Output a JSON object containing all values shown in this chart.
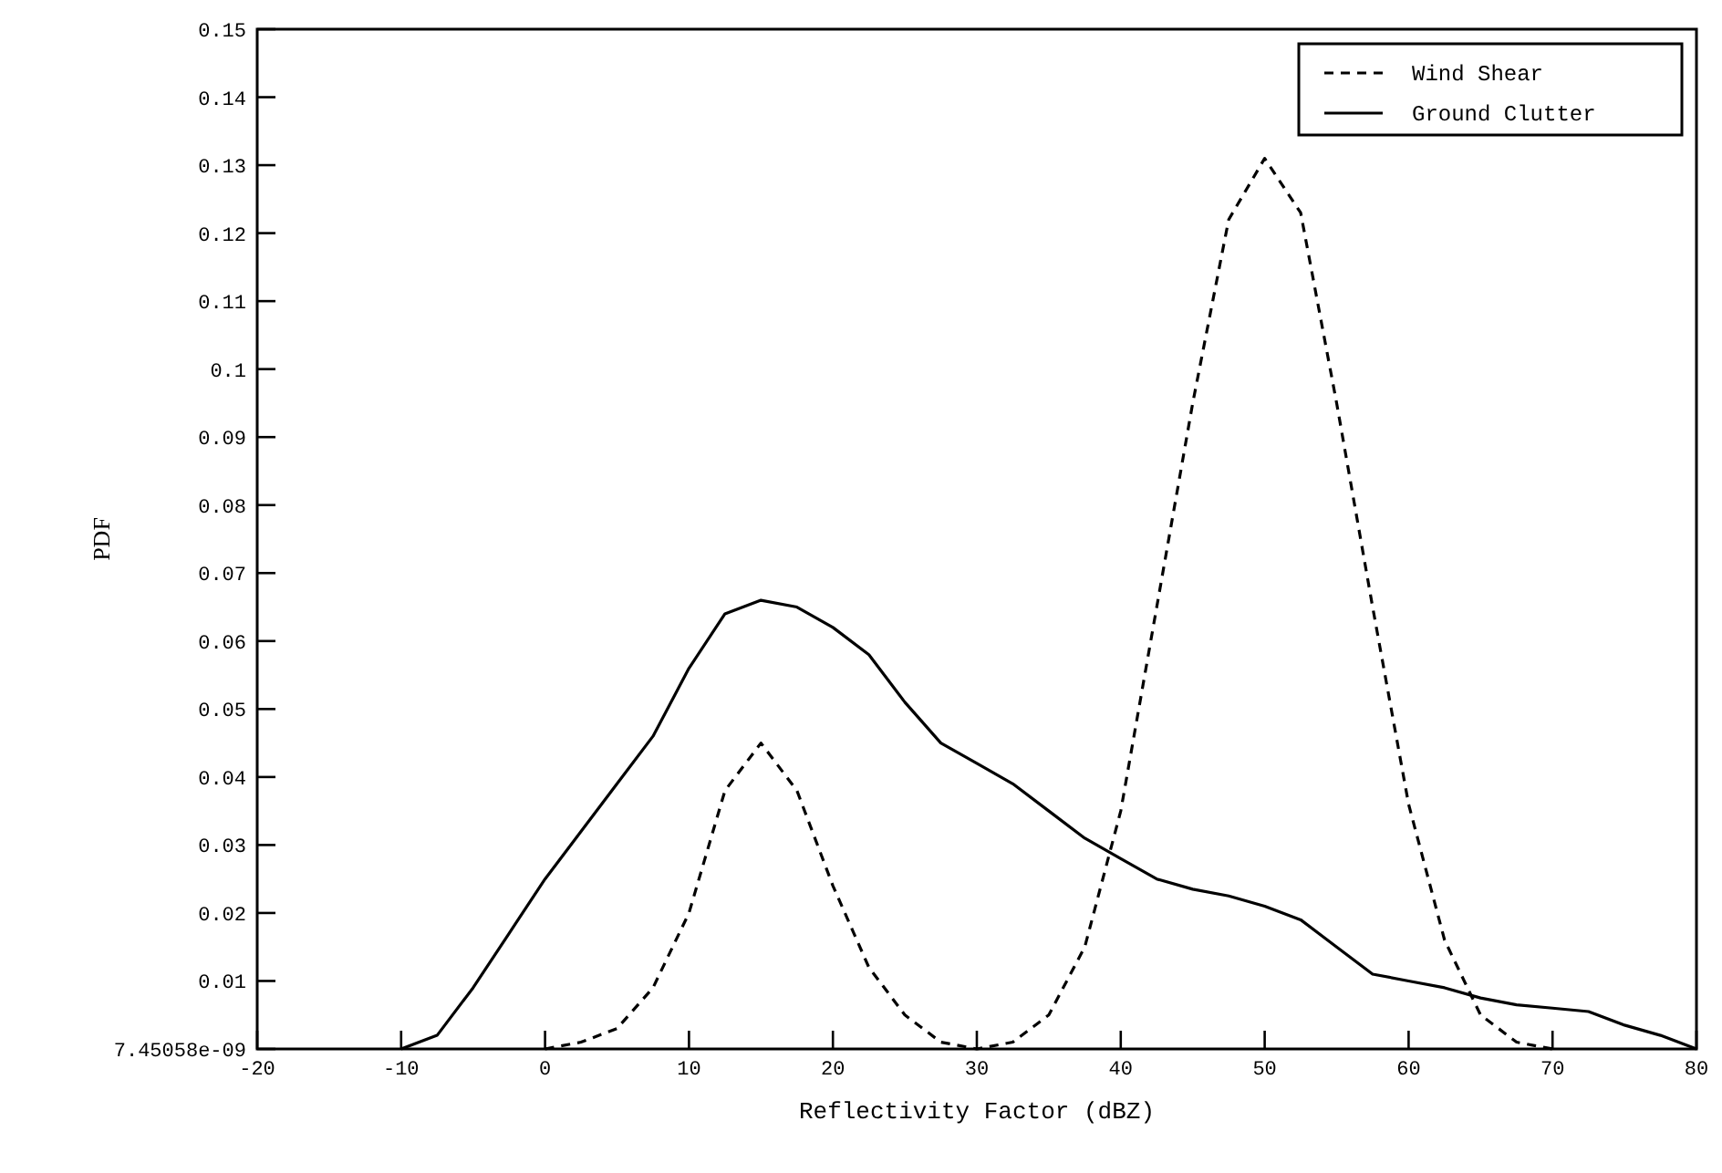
{
  "chart_data": {
    "type": "line",
    "xlabel": "Reflectivity Factor (dBZ)",
    "ylabel": "PDF",
    "xlim": [
      -20,
      80
    ],
    "xticks": [
      -20,
      -10,
      0,
      10,
      20,
      30,
      40,
      50,
      60,
      70,
      80
    ],
    "ylim": [
      7.45058e-09,
      0.15
    ],
    "yticks": [
      {
        "value": 7.45058e-09,
        "label": "7.45058e-09"
      },
      0.01,
      0.02,
      0.03,
      0.04,
      0.05,
      0.06,
      0.07,
      0.08,
      0.09,
      0.1,
      0.11,
      0.12,
      0.13,
      0.14,
      0.15
    ],
    "grid": false,
    "legend": "top right",
    "marker": "none",
    "series": [
      {
        "name": "Wind Shear",
        "color": "#000000",
        "line_style": "dashed",
        "x": [
          0,
          2.5,
          5,
          7.5,
          10,
          12.5,
          15,
          17.5,
          20,
          22.5,
          25,
          27.5,
          30,
          32.5,
          35,
          37.5,
          40,
          42.5,
          45,
          47.5,
          50,
          52.5,
          55,
          57.5,
          60,
          62.5,
          65,
          67.5,
          70
        ],
        "values": [
          7.45058e-09,
          0.001,
          0.003,
          0.009,
          0.02,
          0.038,
          0.045,
          0.038,
          0.024,
          0.012,
          0.005,
          0.001,
          7.45058e-09,
          0.001,
          0.005,
          0.015,
          0.035,
          0.065,
          0.095,
          0.122,
          0.131,
          0.123,
          0.095,
          0.065,
          0.036,
          0.016,
          0.005,
          0.001,
          7.45058e-09
        ]
      },
      {
        "name": "Ground Clutter",
        "color": "#000000",
        "line_style": "solid",
        "x": [
          -10,
          -7.5,
          -5,
          -2.5,
          0,
          2.5,
          5,
          7.5,
          10,
          12.5,
          15,
          17.5,
          20,
          22.5,
          25,
          27.5,
          30,
          32.5,
          35,
          37.5,
          40,
          42.5,
          45,
          47.5,
          50,
          52.5,
          55,
          57.5,
          60,
          62.5,
          65,
          67.5,
          70,
          72.5,
          75,
          77.5,
          80
        ],
        "values": [
          7.45058e-09,
          0.002,
          0.009,
          0.017,
          0.025,
          0.032,
          0.039,
          0.046,
          0.056,
          0.064,
          0.066,
          0.065,
          0.062,
          0.058,
          0.051,
          0.045,
          0.042,
          0.039,
          0.035,
          0.031,
          0.028,
          0.025,
          0.0235,
          0.0225,
          0.021,
          0.019,
          0.015,
          0.011,
          0.01,
          0.009,
          0.0075,
          0.0065,
          0.006,
          0.0055,
          0.0035,
          0.002,
          7.45058e-09
        ]
      }
    ]
  }
}
